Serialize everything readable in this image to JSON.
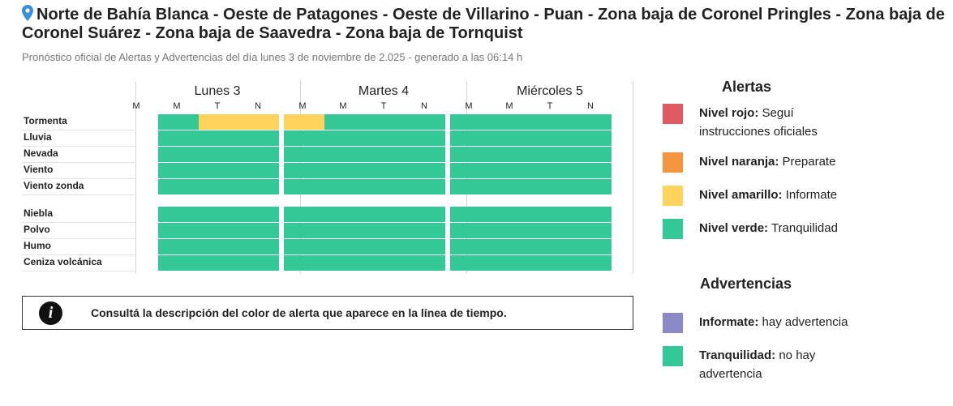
{
  "header": {
    "title": "Norte de Bahía Blanca - Oeste de Patagones - Oeste de Villarino - Puan - Zona baja de Coronel Pringles - Zona baja de Coronel Suárez - Zona baja de Saavedra - Zona baja de Tornquist",
    "subtitle": "Pronóstico oficial de Alertas y Advertencias del día lunes 3 de noviembre de 2.025 - generado a las 06:14 h",
    "pin_icon": "location-pin-icon"
  },
  "colors": {
    "rojo": "#e05a63",
    "naranja": "#f5953f",
    "amarillo": "#fdd35c",
    "verde": "#33c896",
    "violeta": "#8b88c7"
  },
  "timeline": {
    "days": [
      {
        "label": "Lunes 3",
        "slots": [
          "M",
          "M",
          "T",
          "N"
        ]
      },
      {
        "label": "Martes 4",
        "slots": [
          "M",
          "M",
          "T",
          "N"
        ]
      },
      {
        "label": "Miércoles 5",
        "slots": [
          "M",
          "M",
          "T",
          "N"
        ]
      }
    ],
    "groups": [
      {
        "rows": [
          {
            "label": "Tormenta",
            "cells": [
              null,
              "verde",
              "amarillo",
              "amarillo",
              "amarillo",
              "verde",
              "verde",
              "verde",
              "verde",
              "verde",
              "verde",
              "verde"
            ]
          },
          {
            "label": "Lluvia",
            "cells": [
              null,
              "verde",
              "verde",
              "verde",
              "verde",
              "verde",
              "verde",
              "verde",
              "verde",
              "verde",
              "verde",
              "verde"
            ]
          },
          {
            "label": "Nevada",
            "cells": [
              null,
              "verde",
              "verde",
              "verde",
              "verde",
              "verde",
              "verde",
              "verde",
              "verde",
              "verde",
              "verde",
              "verde"
            ]
          },
          {
            "label": "Viento",
            "cells": [
              null,
              "verde",
              "verde",
              "verde",
              "verde",
              "verde",
              "verde",
              "verde",
              "verde",
              "verde",
              "verde",
              "verde"
            ]
          },
          {
            "label": "Viento zonda",
            "cells": [
              null,
              "verde",
              "verde",
              "verde",
              "verde",
              "verde",
              "verde",
              "verde",
              "verde",
              "verde",
              "verde",
              "verde"
            ]
          }
        ]
      },
      {
        "rows": [
          {
            "label": "Niebla",
            "cells": [
              null,
              "verde",
              "verde",
              "verde",
              "verde",
              "verde",
              "verde",
              "verde",
              "verde",
              "verde",
              "verde",
              "verde"
            ]
          },
          {
            "label": "Polvo",
            "cells": [
              null,
              "verde",
              "verde",
              "verde",
              "verde",
              "verde",
              "verde",
              "verde",
              "verde",
              "verde",
              "verde",
              "verde"
            ]
          },
          {
            "label": "Humo",
            "cells": [
              null,
              "verde",
              "verde",
              "verde",
              "verde",
              "verde",
              "verde",
              "verde",
              "verde",
              "verde",
              "verde",
              "verde"
            ]
          },
          {
            "label": "Ceniza volcánica",
            "cells": [
              null,
              "verde",
              "verde",
              "verde",
              "verde",
              "verde",
              "verde",
              "verde",
              "verde",
              "verde",
              "verde",
              "verde"
            ]
          }
        ]
      }
    ]
  },
  "info_box": {
    "icon": "info-icon",
    "text": "Consultá la descripción del color de alerta que aparece en la línea de tiempo."
  },
  "legend": {
    "alertas_title": "Alertas",
    "alertas": [
      {
        "color": "rojo",
        "bold": "Nivel rojo:",
        "text": " Seguí instrucciones oficiales"
      },
      {
        "color": "naranja",
        "bold": "Nivel naranja:",
        "text": " Preparate"
      },
      {
        "color": "amarillo",
        "bold": "Nivel amarillo:",
        "text": " Informate"
      },
      {
        "color": "verde",
        "bold": "Nivel verde:",
        "text": " Tranquilidad"
      }
    ],
    "advertencias_title": "Advertencias",
    "advertencias": [
      {
        "color": "violeta",
        "bold": "Informate:",
        "text": " hay advertencia"
      },
      {
        "color": "verde",
        "bold": "Tranquilidad:",
        "text": " no hay advertencia"
      }
    ]
  }
}
